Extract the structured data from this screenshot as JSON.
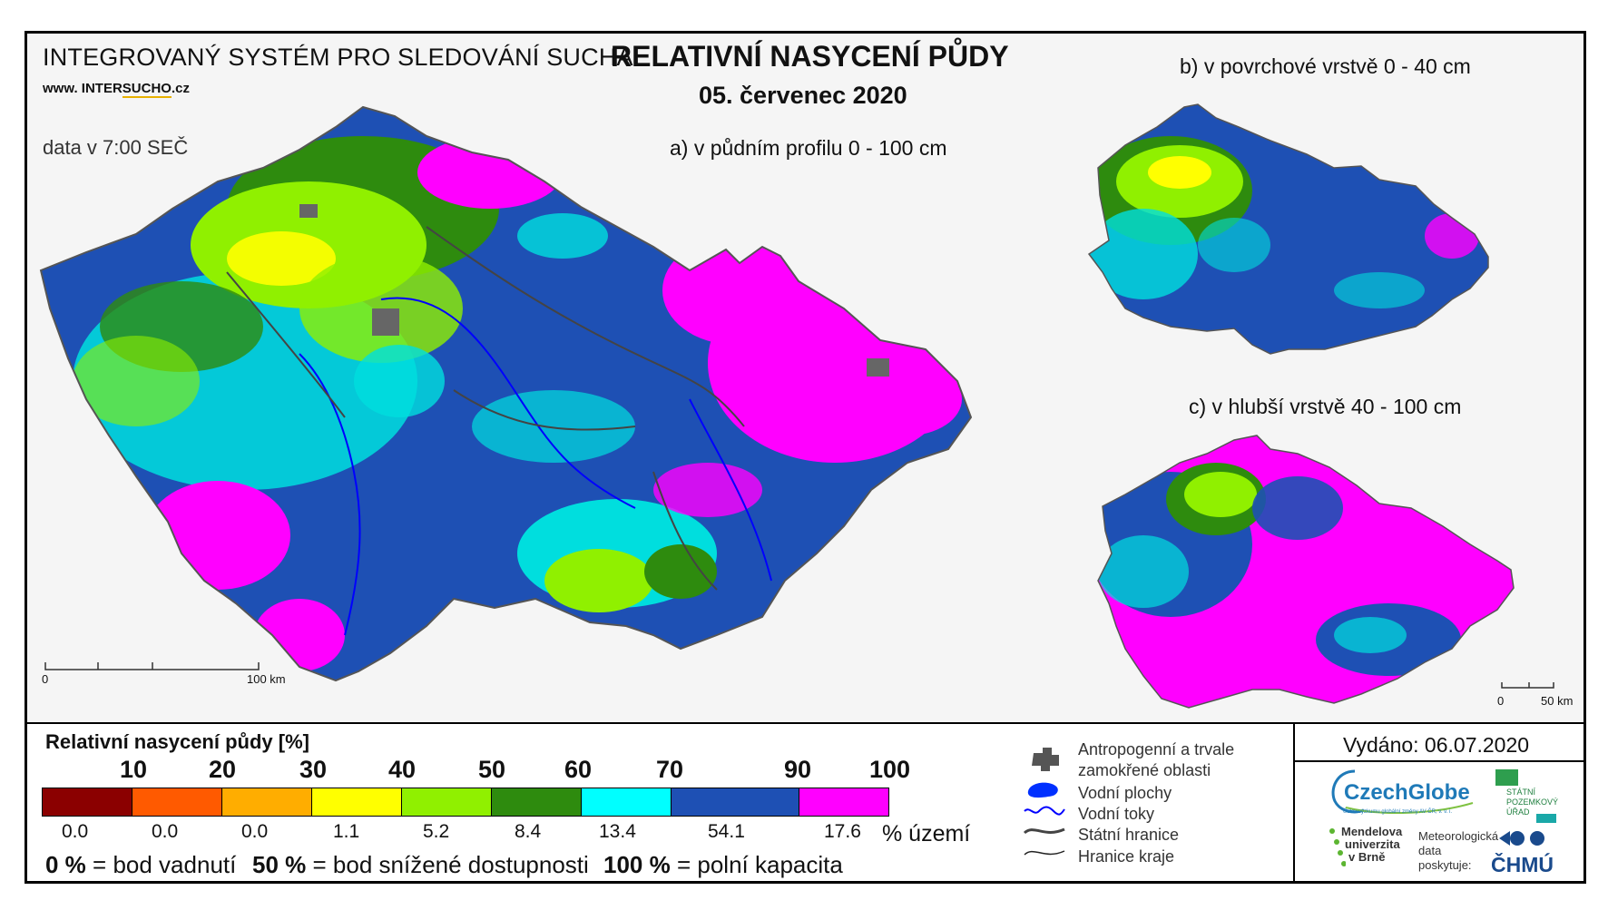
{
  "header": {
    "system_title": "INTEGROVANÝ SYSTÉM PRO SLEDOVÁNÍ SUCHA",
    "url_prefix": "www. INTER",
    "url_highlight": "SUCHO",
    "url_suffix": ".cz",
    "data_time": "data v 7:00 SEČ",
    "title": "RELATIVNÍ NASYCENÍ PŮDY",
    "date": "05. červenec 2020"
  },
  "panels": {
    "a": "a) v půdním profilu 0 - 100 cm",
    "b": "b) v povrchové vrstvě 0 - 40 cm",
    "c": "c) v hlubší vrstvě 40 - 100 cm"
  },
  "scalebar_main": {
    "start": "0",
    "end": "100 km"
  },
  "scalebar_small": {
    "start": "0",
    "end": "50 km"
  },
  "legend": {
    "title": "Relativní nasycení půdy [%]",
    "thresholds": [
      "10",
      "20",
      "30",
      "40",
      "50",
      "60",
      "70",
      "90",
      "100"
    ],
    "classes": [
      {
        "color": "#8b0000",
        "percent": "0.0"
      },
      {
        "color": "#ff5a00",
        "percent": "0.0"
      },
      {
        "color": "#ffad00",
        "percent": "0.0"
      },
      {
        "color": "#ffff00",
        "percent": "1.1"
      },
      {
        "color": "#90f000",
        "percent": "5.2"
      },
      {
        "color": "#2e8b0e",
        "percent": "8.4"
      },
      {
        "color": "#00ffff",
        "percent": "13.4"
      },
      {
        "color": "#1e50b4",
        "percent": "54.1"
      },
      {
        "color": "#ff00ff",
        "percent": "17.6"
      }
    ],
    "unit": "% území",
    "notes": [
      {
        "value": "0 %",
        "text": "= bod vadnutí"
      },
      {
        "value": "50 %",
        "text": "= bod snížené dostupnosti"
      },
      {
        "value": "100 %",
        "text": "= polní kapacita"
      }
    ]
  },
  "symbols": {
    "anthropogenic_line1": "Antropogenní a trvale",
    "anthropogenic_line2": "zamokřené oblasti",
    "water_bodies": "Vodní plochy",
    "rivers": "Vodní toky",
    "state_border": "Státní hranice",
    "region_border": "Hranice kraje"
  },
  "issued": "Vydáno: 06.07.2020",
  "logos": {
    "czechglobe": "CzechGlobe",
    "czechglobe_sub": "Ústav výzkumu globální změny AV ČR, v. v. i.",
    "spu_line1": "STÁTNÍ",
    "spu_line2": "POZEMKOVÝ",
    "spu_line3": "ÚŘAD",
    "mendel_line1": "Mendelova",
    "mendel_line2": "univerzita",
    "mendel_line3": "v Brně",
    "met_line1": "Meteorologická",
    "met_line2": "data",
    "met_line3": "poskytuje:",
    "chmu": "ČHMÚ"
  },
  "colors": {
    "magenta": "#ff00ff",
    "blue": "#1e50b4",
    "cyan": "#00ffff",
    "green": "#2e8b0e",
    "lightgreen": "#90f000",
    "yellow": "#ffff00"
  }
}
